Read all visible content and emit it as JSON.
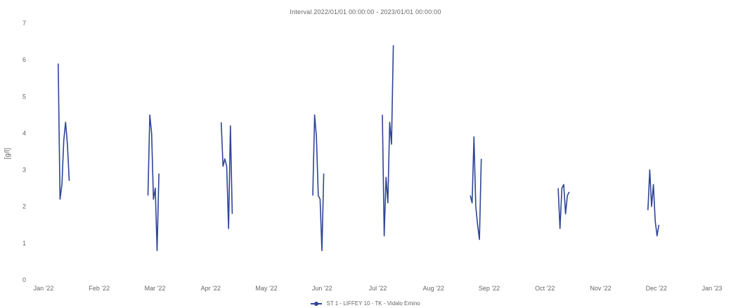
{
  "chart_data": {
    "type": "line",
    "title": "Interval 2022/01/01 00:00:00 - 2023/01/01 00:00:00",
    "xlabel": "",
    "ylabel": "[g/l]",
    "x_tick_labels": [
      "Jan '22",
      "Feb '22",
      "Mar '22",
      "Apr '22",
      "May '22",
      "Jun '22",
      "Jul '22",
      "Aug '22",
      "Sep '22",
      "Oct '22",
      "Nov '22",
      "Dec '22",
      "Jan '23"
    ],
    "y_tick_labels": [
      "0",
      "1",
      "2",
      "3",
      "4",
      "5",
      "6",
      "7"
    ],
    "ylim": [
      0,
      7
    ],
    "xlim": [
      "2022-01-01",
      "2023-01-01"
    ],
    "grid": false,
    "legend_position": "bottom",
    "colors": {
      "series": "#2f4597",
      "text": "#666666"
    },
    "series": [
      {
        "name": "ST 1 - LIFFEY 10 - TK - Vidalo Emino",
        "segments": [
          [
            {
              "x": "2022-01-09",
              "y": 5.9
            },
            {
              "x": "2022-01-10",
              "y": 2.2
            },
            {
              "x": "2022-01-11",
              "y": 2.6
            },
            {
              "x": "2022-01-12",
              "y": 3.8
            },
            {
              "x": "2022-01-13",
              "y": 4.3
            },
            {
              "x": "2022-01-14",
              "y": 3.7
            },
            {
              "x": "2022-01-15",
              "y": 2.7
            }
          ],
          [
            {
              "x": "2022-02-27",
              "y": 2.3
            },
            {
              "x": "2022-02-28",
              "y": 4.5
            },
            {
              "x": "2022-03-01",
              "y": 4.0
            },
            {
              "x": "2022-03-02",
              "y": 2.2
            },
            {
              "x": "2022-03-03",
              "y": 2.5
            },
            {
              "x": "2022-03-04",
              "y": 0.8
            },
            {
              "x": "2022-03-05",
              "y": 2.9
            }
          ],
          [
            {
              "x": "2022-04-08",
              "y": 4.3
            },
            {
              "x": "2022-04-09",
              "y": 3.1
            },
            {
              "x": "2022-04-10",
              "y": 3.3
            },
            {
              "x": "2022-04-11",
              "y": 3.1
            },
            {
              "x": "2022-04-12",
              "y": 1.4
            },
            {
              "x": "2022-04-13",
              "y": 4.2
            },
            {
              "x": "2022-04-14",
              "y": 1.8
            }
          ],
          [
            {
              "x": "2022-05-28",
              "y": 2.3
            },
            {
              "x": "2022-05-29",
              "y": 4.5
            },
            {
              "x": "2022-05-30",
              "y": 3.9
            },
            {
              "x": "2022-05-31",
              "y": 2.3
            },
            {
              "x": "2022-06-01",
              "y": 2.2
            },
            {
              "x": "2022-06-02",
              "y": 0.8
            },
            {
              "x": "2022-06-03",
              "y": 2.9
            }
          ],
          [
            {
              "x": "2022-07-05",
              "y": 4.5
            },
            {
              "x": "2022-07-06",
              "y": 1.2
            },
            {
              "x": "2022-07-07",
              "y": 2.8
            },
            {
              "x": "2022-07-08",
              "y": 2.1
            },
            {
              "x": "2022-07-09",
              "y": 4.3
            },
            {
              "x": "2022-07-10",
              "y": 3.7
            },
            {
              "x": "2022-07-11",
              "y": 6.4
            }
          ],
          [
            {
              "x": "2022-08-22",
              "y": 2.3
            },
            {
              "x": "2022-08-23",
              "y": 2.1
            },
            {
              "x": "2022-08-24",
              "y": 3.9
            },
            {
              "x": "2022-08-25",
              "y": 2.0
            },
            {
              "x": "2022-08-26",
              "y": 1.5
            },
            {
              "x": "2022-08-27",
              "y": 1.1
            },
            {
              "x": "2022-08-28",
              "y": 3.3
            }
          ],
          [
            {
              "x": "2022-10-09",
              "y": 2.5
            },
            {
              "x": "2022-10-10",
              "y": 1.4
            },
            {
              "x": "2022-10-11",
              "y": 2.5
            },
            {
              "x": "2022-10-12",
              "y": 2.6
            },
            {
              "x": "2022-10-13",
              "y": 1.8
            },
            {
              "x": "2022-10-14",
              "y": 2.3
            },
            {
              "x": "2022-10-15",
              "y": 2.4
            }
          ],
          [
            {
              "x": "2022-11-27",
              "y": 1.9
            },
            {
              "x": "2022-11-28",
              "y": 3.0
            },
            {
              "x": "2022-11-29",
              "y": 2.0
            },
            {
              "x": "2022-11-30",
              "y": 2.6
            },
            {
              "x": "2022-12-01",
              "y": 1.6
            },
            {
              "x": "2022-12-02",
              "y": 1.2
            },
            {
              "x": "2022-12-03",
              "y": 1.5
            }
          ]
        ]
      }
    ]
  }
}
